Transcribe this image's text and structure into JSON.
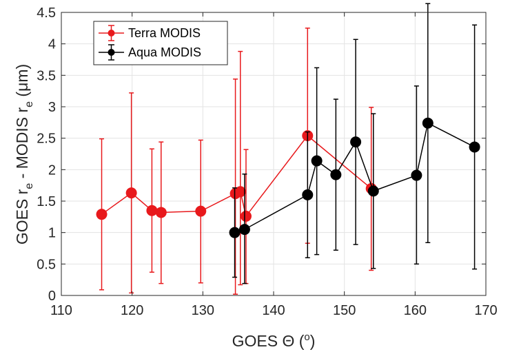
{
  "chart_data": {
    "type": "scatter",
    "xlabel": {
      "main": "GOES Θ (",
      "sup": "o",
      "end": ")"
    },
    "ylabel": {
      "a": "GOES r",
      "a_sub": "e",
      "b": " - MODIS r",
      "b_sub": "e",
      "c": " (μm)"
    },
    "xlim": [
      110,
      170
    ],
    "ylim": [
      0,
      4.5
    ],
    "xticks": [
      110,
      120,
      130,
      140,
      150,
      160,
      170
    ],
    "yticks": [
      0,
      0.5,
      1,
      1.5,
      2,
      2.5,
      3,
      3.5,
      4,
      4.5
    ],
    "ytick_labels": [
      "0",
      "0.5",
      "1",
      "1.5",
      "2",
      "2.5",
      "3",
      "3.5",
      "4",
      "4.5"
    ],
    "grid": true,
    "legend_position": "top-left",
    "series": [
      {
        "name": "Terra MODIS",
        "color": "#e8191c",
        "points": [
          {
            "x": 115.7,
            "y": 1.29,
            "lo": 0.09,
            "hi": 2.49
          },
          {
            "x": 119.9,
            "y": 1.63,
            "lo": 0.04,
            "hi": 3.22
          },
          {
            "x": 122.8,
            "y": 1.35,
            "lo": 0.37,
            "hi": 2.33
          },
          {
            "x": 124.1,
            "y": 1.32,
            "lo": 0.19,
            "hi": 2.44
          },
          {
            "x": 129.7,
            "y": 1.34,
            "lo": 0.2,
            "hi": 2.47
          },
          {
            "x": 134.6,
            "y": 1.62,
            "lo": 0.02,
            "hi": 3.44
          },
          {
            "x": 135.3,
            "y": 1.65,
            "lo": 0.17,
            "hi": 3.88
          },
          {
            "x": 136.1,
            "y": 1.26,
            "lo": 0.19,
            "hi": 2.32
          },
          {
            "x": 144.8,
            "y": 2.54,
            "lo": 0.83,
            "hi": 4.25
          },
          {
            "x": 153.8,
            "y": 1.7,
            "lo": 0.4,
            "hi": 2.99
          }
        ]
      },
      {
        "name": "Aqua MODIS",
        "color": "#000000",
        "points": [
          {
            "x": 134.5,
            "y": 1.0,
            "lo": 0.29,
            "hi": 1.71
          },
          {
            "x": 135.9,
            "y": 1.05,
            "lo": 0.19,
            "hi": 1.93
          },
          {
            "x": 144.8,
            "y": 1.6,
            "lo": 0.6,
            "hi": 2.6
          },
          {
            "x": 146.1,
            "y": 2.14,
            "lo": 0.65,
            "hi": 3.62
          },
          {
            "x": 148.8,
            "y": 1.92,
            "lo": 0.72,
            "hi": 3.12
          },
          {
            "x": 151.6,
            "y": 2.44,
            "lo": 0.81,
            "hi": 4.07
          },
          {
            "x": 154.1,
            "y": 1.66,
            "lo": 0.43,
            "hi": 2.89
          },
          {
            "x": 160.2,
            "y": 1.91,
            "lo": 0.5,
            "hi": 3.33
          },
          {
            "x": 161.8,
            "y": 2.74,
            "lo": 0.84,
            "hi": 4.64
          },
          {
            "x": 168.4,
            "y": 2.36,
            "lo": 0.42,
            "hi": 4.3
          }
        ]
      }
    ]
  }
}
